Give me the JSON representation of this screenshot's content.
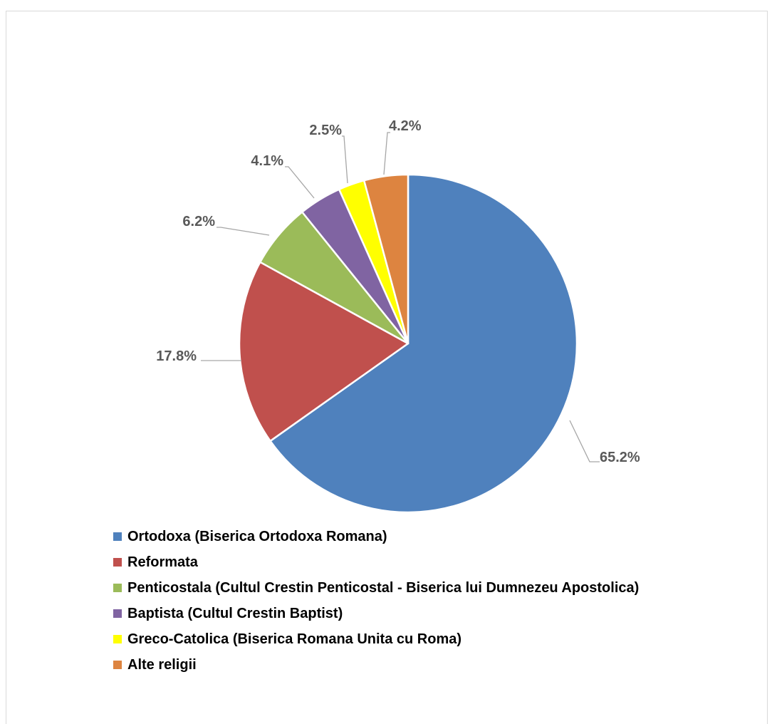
{
  "chart_data": {
    "type": "pie",
    "title": "",
    "start_angle_deg": 0,
    "direction": "clockwise",
    "legend_position": "bottom",
    "slices": [
      {
        "name": "Ortodoxa (Biserica Ortodoxa Romana)",
        "value": 65.2,
        "label": "65.2%",
        "color": "#4F81BD"
      },
      {
        "name": "Reformata",
        "value": 17.8,
        "label": "17.8%",
        "color": "#C0504D"
      },
      {
        "name": "Penticostala (Cultul Crestin Penticostal - Biserica lui Dumnezeu Apostolica)",
        "value": 6.2,
        "label": "6.2%",
        "color": "#9BBB59"
      },
      {
        "name": "Baptista (Cultul Crestin Baptist)",
        "value": 4.1,
        "label": "4.1%",
        "color": "#8064A2"
      },
      {
        "name": "Greco-Catolica (Biserica Romana Unita cu Roma)",
        "value": 2.5,
        "label": "2.5%",
        "color": "#FFFF00"
      },
      {
        "name": "Alte religii",
        "value": 4.2,
        "label": "4.2%",
        "color": "#DD8440"
      }
    ]
  }
}
